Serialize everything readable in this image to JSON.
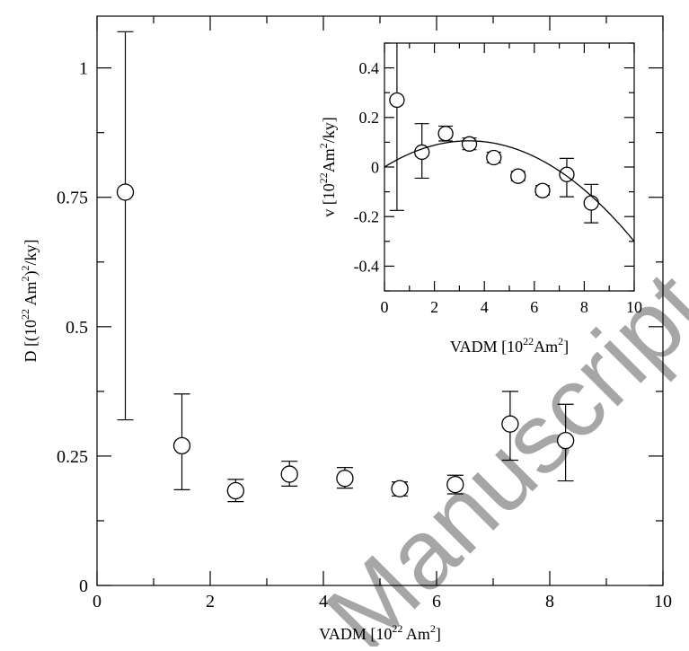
{
  "watermark": "Manuscript",
  "chart_data": [
    {
      "type": "scatter",
      "xlabel": "VADM [10^22 Am^2]",
      "ylabel": "D [(10^22 Am^2)^2/ky]",
      "xlim": [
        0,
        10
      ],
      "ylim": [
        0,
        1.1
      ],
      "xticks": [
        0,
        2,
        4,
        6,
        8,
        10
      ],
      "xtick_labels": [
        "0",
        "2",
        "4",
        "6",
        "8",
        "10"
      ],
      "yticks": [
        0,
        0.25,
        0.5,
        0.75,
        1
      ],
      "ytick_labels": [
        "0",
        "0.25",
        "0.5",
        "0.75",
        "1"
      ],
      "grid": false,
      "series": [
        {
          "marker": "open-circle",
          "points": [
            {
              "x": 0.5,
              "y": 0.76,
              "err_low": 0.32,
              "err_high": 1.07
            },
            {
              "x": 1.5,
              "y": 0.27,
              "err_low": 0.185,
              "err_high": 0.37
            },
            {
              "x": 2.45,
              "y": 0.183,
              "err_low": 0.162,
              "err_high": 0.205
            },
            {
              "x": 3.4,
              "y": 0.215,
              "err_low": 0.192,
              "err_high": 0.24
            },
            {
              "x": 4.38,
              "y": 0.207,
              "err_low": 0.188,
              "err_high": 0.228
            },
            {
              "x": 5.35,
              "y": 0.187,
              "err_low": 0.173,
              "err_high": 0.2
            },
            {
              "x": 6.33,
              "y": 0.195,
              "err_low": 0.177,
              "err_high": 0.213
            },
            {
              "x": 7.3,
              "y": 0.312,
              "err_low": 0.242,
              "err_high": 0.375
            },
            {
              "x": 8.28,
              "y": 0.28,
              "err_low": 0.202,
              "err_high": 0.35
            }
          ]
        }
      ]
    },
    {
      "type": "scatter",
      "xlabel": "VADM [10^22 Am^2]",
      "ylabel": "v [10^22 Am^2/ky]",
      "xlim": [
        0,
        10
      ],
      "ylim": [
        -0.5,
        0.5
      ],
      "xticks": [
        0,
        2,
        4,
        6,
        8,
        10
      ],
      "xtick_labels": [
        "0",
        "2",
        "4",
        "6",
        "8",
        "10"
      ],
      "yticks": [
        -0.4,
        -0.2,
        0,
        0.2,
        0.4
      ],
      "ytick_labels": [
        "-0.4",
        "-0.2",
        "0",
        "0.2",
        "0.4"
      ],
      "grid": false,
      "series": [
        {
          "marker": "open-circle",
          "points": [
            {
              "x": 0.5,
              "y": 0.27,
              "err_low": -0.175,
              "err_high": 0.58
            },
            {
              "x": 1.5,
              "y": 0.06,
              "err_low": -0.045,
              "err_high": 0.175
            },
            {
              "x": 2.45,
              "y": 0.135,
              "err_low": 0.105,
              "err_high": 0.165
            },
            {
              "x": 3.4,
              "y": 0.093,
              "err_low": 0.07,
              "err_high": 0.117
            },
            {
              "x": 4.38,
              "y": 0.038,
              "err_low": 0.017,
              "err_high": 0.06
            },
            {
              "x": 5.35,
              "y": -0.037,
              "err_low": -0.055,
              "err_high": -0.018
            },
            {
              "x": 6.33,
              "y": -0.095,
              "err_low": -0.113,
              "err_high": -0.075
            },
            {
              "x": 7.3,
              "y": -0.03,
              "err_low": -0.12,
              "err_high": 0.035
            },
            {
              "x": 8.28,
              "y": -0.145,
              "err_low": -0.225,
              "err_high": -0.07
            }
          ]
        },
        {
          "style": "line",
          "curve": {
            "form": "a*x - b*x^2",
            "a": 0.0625,
            "b": 0.00925
          },
          "x_range": [
            0,
            10
          ]
        }
      ]
    }
  ]
}
